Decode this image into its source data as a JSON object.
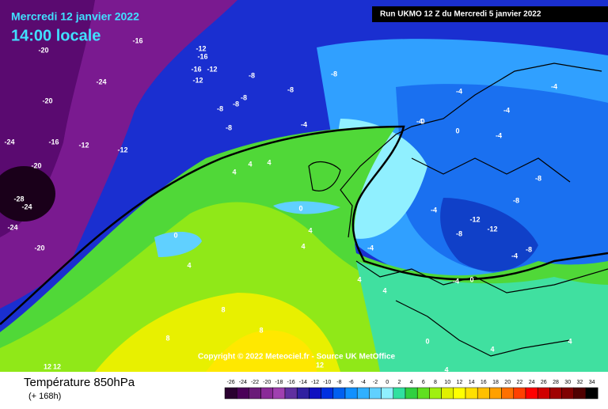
{
  "header": {
    "date": "Mercredi 12 janvier 2022",
    "time": "14:00 locale",
    "run": "Run UKMO 12 Z du Mercredi 5 janvier 2022"
  },
  "map": {
    "copyright": "Copyright © 2022 Meteociel.fr - Source UK MetOffice",
    "labels": [
      -20,
      -24,
      -20,
      -16,
      -12,
      -16,
      -12,
      -16,
      -12,
      -8,
      -8,
      -8,
      -8,
      -8,
      -8,
      -8,
      -4,
      -24,
      -16,
      -12,
      -12,
      -20,
      -28,
      -24,
      -24,
      -20,
      4,
      4,
      4,
      0,
      0,
      4,
      4,
      4,
      -4,
      4,
      8,
      8,
      8,
      12,
      12,
      12,
      -4,
      -4,
      0,
      -4,
      -8,
      -8,
      -12,
      -12,
      -8,
      -4,
      -8,
      0,
      4,
      4,
      4,
      0,
      -4,
      4,
      -4,
      -4,
      0,
      -4
    ]
  },
  "legend": {
    "title": "Température 850hPa",
    "subtitle": "(+ 168h)",
    "ticks": [
      -26,
      -24,
      -22,
      -20,
      -18,
      -16,
      -14,
      -12,
      -10,
      -8,
      -6,
      -4,
      -2,
      0,
      2,
      4,
      6,
      8,
      10,
      12,
      14,
      16,
      18,
      20,
      22,
      24,
      26,
      28,
      30,
      32,
      34
    ],
    "colors": [
      "#2a0030",
      "#4a0058",
      "#6a1a78",
      "#8a2a98",
      "#a040b0",
      "#6030a0",
      "#3020a0",
      "#1010c0",
      "#0030e0",
      "#0060f0",
      "#1090ff",
      "#30b0ff",
      "#60d0ff",
      "#90f0ff",
      "#30e0a0",
      "#30d040",
      "#60e020",
      "#a0f010",
      "#e0f000",
      "#ffff00",
      "#ffe000",
      "#ffc000",
      "#ffa000",
      "#ff7000",
      "#ff4000",
      "#ff0000",
      "#d00000",
      "#a00000",
      "#800000",
      "#500000",
      "#000000"
    ]
  }
}
